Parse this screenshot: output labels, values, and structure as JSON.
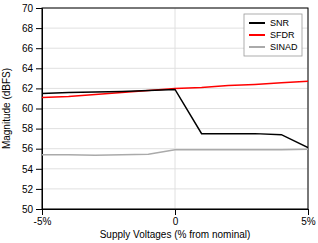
{
  "chart_data": {
    "type": "line",
    "xlabel": "Supply Voltages (% from nominal)",
    "ylabel": "Magnitude (dBFS)",
    "x": [
      -5,
      -4,
      -3,
      -2,
      -1,
      0,
      1,
      2,
      3,
      4,
      5
    ],
    "series": [
      {
        "name": "SNR",
        "color": "#000000",
        "values": [
          61.5,
          61.6,
          61.65,
          61.7,
          61.8,
          61.9,
          57.5,
          57.5,
          57.5,
          57.4,
          56.1
        ]
      },
      {
        "name": "SFDR",
        "color": "#ff0000",
        "values": [
          61.1,
          61.2,
          61.4,
          61.6,
          61.8,
          62.0,
          62.1,
          62.3,
          62.4,
          62.55,
          62.7
        ]
      },
      {
        "name": "SINAD",
        "color": "#aaaaaa",
        "values": [
          55.4,
          55.4,
          55.35,
          55.4,
          55.45,
          55.9,
          55.9,
          55.9,
          55.9,
          55.9,
          55.95
        ]
      }
    ],
    "xlim": [
      -5,
      5
    ],
    "xticks": [
      {
        "value": -5,
        "label": "-5%"
      },
      0,
      {
        "value": 5,
        "label": "5%"
      }
    ],
    "ylim": [
      50,
      70
    ],
    "yticks": [
      50,
      52,
      54,
      56,
      58,
      60,
      62,
      64,
      66,
      68,
      70
    ],
    "grid": true,
    "legend": "upper-right"
  }
}
